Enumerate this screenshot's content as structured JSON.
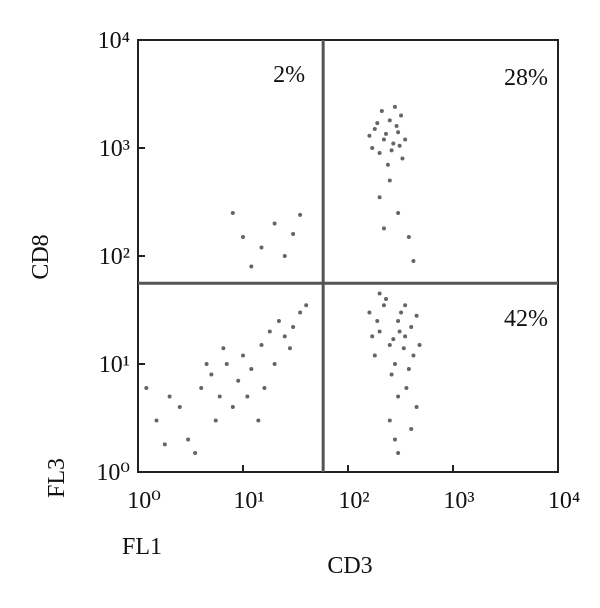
{
  "chart_data": {
    "type": "scatter",
    "x_label": "CD3",
    "y_label": "CD8",
    "x_channel": "FL1",
    "y_channel": "FL3",
    "log_x": true,
    "log_y": true,
    "xlim": [
      1,
      10000
    ],
    "ylim": [
      1,
      10000
    ],
    "xticks": [
      {
        "value": 1,
        "label": "10⁰"
      },
      {
        "value": 10,
        "label": "10¹"
      },
      {
        "value": 100,
        "label": "10²"
      },
      {
        "value": 1000,
        "label": "10³"
      },
      {
        "value": 10000,
        "label": "10⁴"
      }
    ],
    "yticks": [
      {
        "value": 1,
        "label": "10⁰"
      },
      {
        "value": 10,
        "label": "10¹"
      },
      {
        "value": 100,
        "label": "10²"
      },
      {
        "value": 1000,
        "label": "10³"
      },
      {
        "value": 10000,
        "label": "10⁴"
      }
    ],
    "gates": {
      "x": 58,
      "y": 56
    },
    "annotations": [
      "2%",
      "28%",
      "42%"
    ],
    "color": "#4a4a4a",
    "x": [
      180,
      220,
      250,
      300,
      200,
      270,
      320,
      160,
      240,
      290,
      350,
      210,
      260,
      190,
      330,
      230,
      280,
      170,
      310,
      250,
      200,
      300,
      380,
      420,
      220,
      200,
      250,
      300,
      350,
      180,
      280,
      320,
      400,
      220,
      260,
      340,
      450,
      190,
      300,
      380,
      230,
      270,
      420,
      160,
      310,
      360,
      250,
      400,
      300,
      450,
      200,
      480,
      170,
      350,
      280,
      1.5,
      2,
      2.5,
      3,
      4,
      5,
      6,
      7,
      8,
      10,
      12,
      15,
      18,
      20,
      25,
      30,
      1.2,
      3.5,
      5.5,
      9,
      11,
      14,
      22,
      28,
      35,
      1.8,
      4.5,
      6.5,
      16,
      40,
      8,
      10,
      15,
      20,
      25,
      30,
      12,
      35
    ],
    "y": [
      1500,
      1200,
      1800,
      1400,
      900,
      1100,
      2000,
      1300,
      700,
      1600,
      1200,
      2200,
      950,
      1700,
      800,
      1350,
      2400,
      1000,
      1050,
      500,
      350,
      250,
      150,
      90,
      180,
      20,
      15,
      25,
      18,
      12,
      10,
      30,
      22,
      35,
      8,
      14,
      28,
      25,
      5,
      9,
      40,
      17,
      12,
      30,
      20,
      6,
      3,
      2.5,
      1.5,
      4,
      45,
      15,
      18,
      35,
      2,
      3,
      5,
      4,
      2,
      6,
      8,
      5,
      10,
      4,
      12,
      9,
      15,
      20,
      10,
      18,
      22,
      6,
      1.5,
      3,
      7,
      5,
      3,
      25,
      14,
      30,
      1.8,
      10,
      14,
      6,
      35,
      250,
      150,
      120,
      200,
      100,
      160,
      80,
      240
    ]
  }
}
